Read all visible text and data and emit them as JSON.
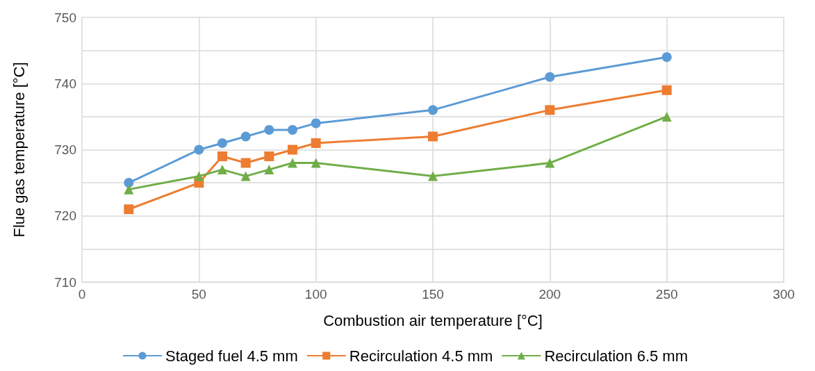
{
  "chart_data": {
    "type": "line",
    "xlabel": "Combustion air temperature [°C]",
    "ylabel": "Flue gas temperature [°C]",
    "x": [
      20,
      50,
      60,
      70,
      80,
      90,
      100,
      150,
      200,
      250
    ],
    "series": [
      {
        "name": "Staged fuel 4.5 mm",
        "color": "#5b9bd5",
        "marker": "circle",
        "values": [
          725,
          730,
          731,
          732,
          733,
          733,
          734,
          736,
          741,
          744
        ]
      },
      {
        "name": "Recirculation 4.5 mm",
        "color": "#ed7d31",
        "marker": "square",
        "values": [
          721,
          725,
          729,
          728,
          729,
          730,
          731,
          732,
          736,
          739
        ]
      },
      {
        "name": "Recirculation 6.5 mm",
        "color": "#70ad47",
        "marker": "triangle",
        "values": [
          724,
          726,
          727,
          726,
          727,
          728,
          728,
          726,
          728,
          735
        ]
      }
    ],
    "xlim": [
      0,
      300
    ],
    "xticks": [
      0,
      50,
      100,
      150,
      200,
      250,
      300
    ],
    "ylim": [
      710,
      750
    ],
    "yticks": [
      710,
      {
        "value": 715,
        "label": null
      },
      720,
      {
        "value": 725,
        "label": null
      },
      730,
      {
        "value": 735,
        "label": null
      },
      740,
      {
        "value": 745,
        "label": null
      },
      750
    ],
    "grid": true,
    "legend": "bottom",
    "line_style": "solid"
  }
}
